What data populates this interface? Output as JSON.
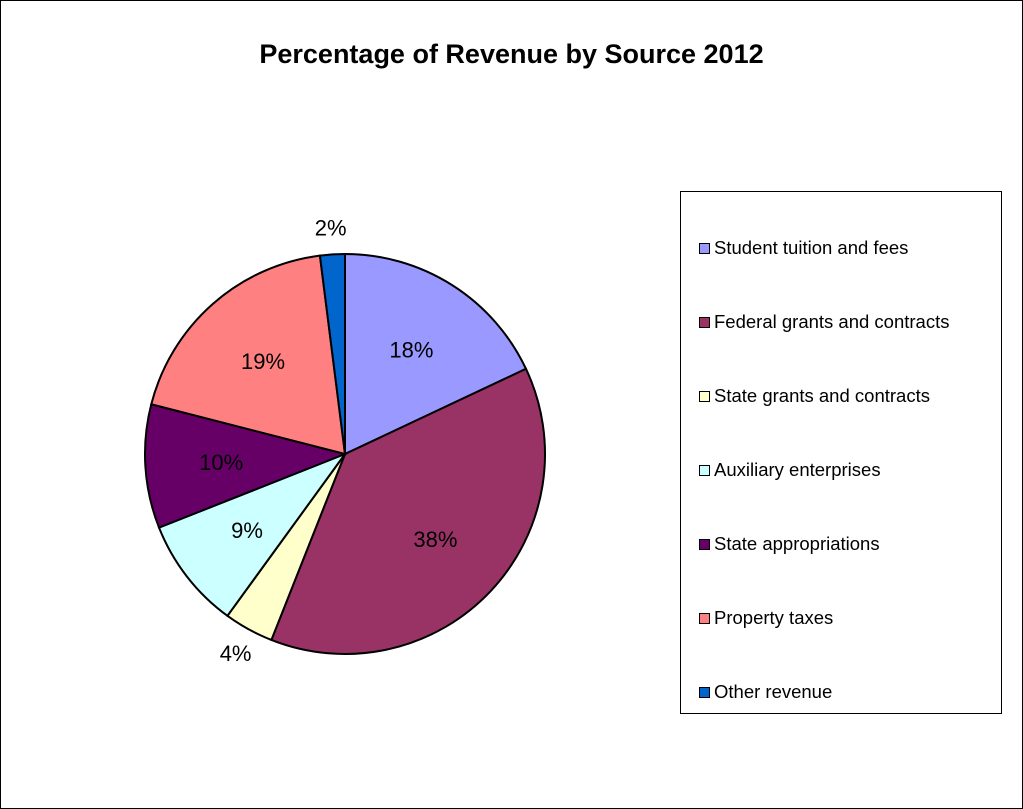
{
  "chart_data": {
    "type": "pie",
    "title": "Percentage of Revenue by Source 2012",
    "legend_position": "right",
    "slices": [
      {
        "label": "Student tuition and fees",
        "value": 18,
        "display": "18%",
        "color": "#9999ff"
      },
      {
        "label": "Federal grants and contracts",
        "value": 38,
        "display": "38%",
        "color": "#993366"
      },
      {
        "label": "State grants and contracts",
        "value": 4,
        "display": "4%",
        "color": "#ffffcc"
      },
      {
        "label": "Auxiliary enterprises",
        "value": 9,
        "display": "9%",
        "color": "#ccffff"
      },
      {
        "label": "State appropriations",
        "value": 10,
        "display": "10%",
        "color": "#660066"
      },
      {
        "label": "Property taxes",
        "value": 19,
        "display": "19%",
        "color": "#ff8080"
      },
      {
        "label": "Other revenue",
        "value": 2,
        "display": "2%",
        "color": "#0066cc"
      }
    ]
  }
}
